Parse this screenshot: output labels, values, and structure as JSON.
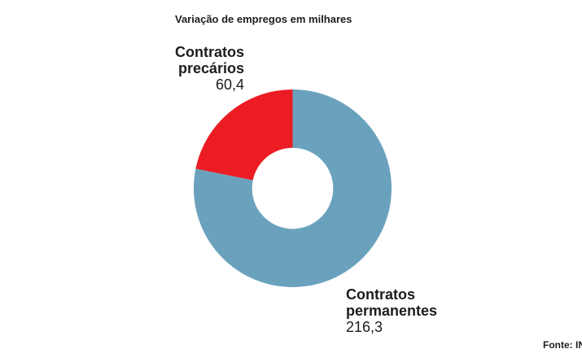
{
  "title": "Variação de empregos em milhares",
  "source": "Fonte: IN",
  "chart_data": {
    "type": "pie",
    "subtype": "donut",
    "title": "Variação de empregos em milhares",
    "start_angle_deg": 90,
    "direction": "counterclockwise",
    "inner_radius_ratio": 0.41,
    "slices": [
      {
        "label": "Contratos precários",
        "value": 60.4,
        "value_label": "60,4",
        "color": "#ec1c24"
      },
      {
        "label": "Contratos permanentes",
        "value": 216.3,
        "value_label": "216,3",
        "color": "#6aa2be"
      }
    ],
    "colors": {
      "precarios_red": "#ec1c24",
      "permanentes_blue": "#6aa2be",
      "text": "#1d1d1b",
      "background": "#ffffff"
    }
  }
}
